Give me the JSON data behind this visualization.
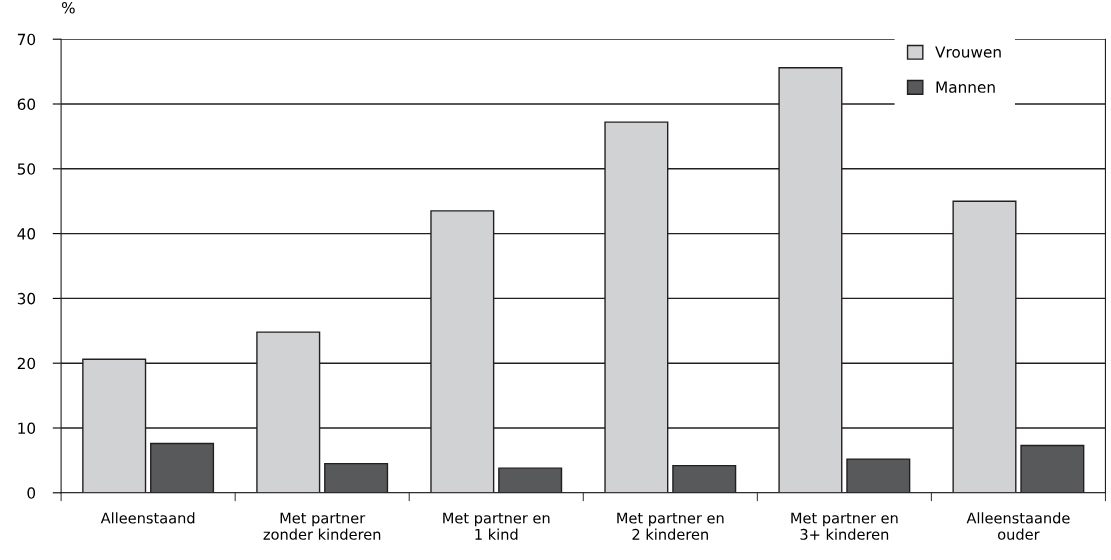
{
  "chart_data": {
    "type": "bar",
    "ylabel": "%",
    "categories": [
      "Alleenstaand",
      "Met partner\nzonder kinderen",
      "Met partner en\n1 kind",
      "Met partner en\n2 kinderen",
      "Met partner en\n3+ kinderen",
      "Alleenstaande\nouder"
    ],
    "series": [
      {
        "name": "Vrouwen",
        "color": "#d1d2d4",
        "values": [
          20.6,
          24.8,
          43.5,
          57.2,
          65.6,
          45.0
        ]
      },
      {
        "name": "Mannen",
        "color": "#58595b",
        "values": [
          7.6,
          4.5,
          3.8,
          4.2,
          5.2,
          7.3
        ]
      }
    ],
    "ylim": [
      0,
      70
    ],
    "yticks": [
      0,
      10,
      20,
      30,
      40,
      50,
      60,
      70
    ],
    "grid": "y",
    "legend": "top right"
  }
}
